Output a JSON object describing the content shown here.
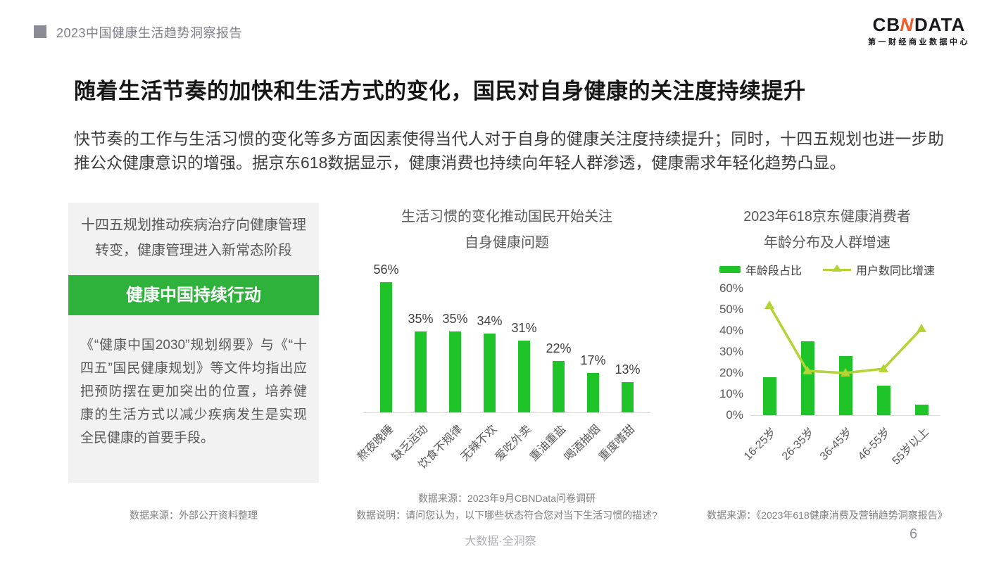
{
  "header": {
    "report_title": "2023中国健康生活趋势洞察报告",
    "bullet_color": "#8c8c96",
    "logo": {
      "name": "CBNDATA",
      "part_cb": "CB",
      "part_n": "N",
      "part_data": "DATA",
      "subtitle": "第一财经商业数据中心",
      "accent_color": "#f15a29"
    }
  },
  "page": {
    "title": "随着生活节奏的加快和生活方式的变化，国民对自身健康的关注度持续提升",
    "intro": "快节奏的工作与生活习惯的变化等多方面因素使得当代人对于自身的健康关注度持续提升；同时，十四五规划也进一步助推公众健康意识的增强。据京东618数据显示，健康消费也持续向年轻人群渗透，健康需求年轻化趋势凸显。"
  },
  "left_panel": {
    "title_lines": [
      "十四五规划推动疾病治疗向健康管理",
      "转变，健康管理进入新常态阶段"
    ],
    "banner": "健康中国持续行动",
    "banner_color": "#2eb23c",
    "body": "《“健康中国2030”规划纲要》与《“十四五”国民健康规划》等文件均指出应把预防摆在更加突出的位置，培养健康的生活方式以减少疾病发生是实现全民健康的首要手段。",
    "source": "数据来源：外部公开资料整理"
  },
  "chart_data": [
    {
      "type": "bar",
      "title": "生活习惯的变化推动国民开始关注自身健康问题",
      "title_lines": [
        "生活习惯的变化推动国民开始关注",
        "自身健康问题"
      ],
      "categories": [
        "熬夜晚睡",
        "缺乏运动",
        "饮食不规律",
        "无辣不欢",
        "爱吃外卖",
        "重油重盐",
        "喝酒抽烟",
        "重度嗜甜"
      ],
      "values": [
        56,
        35,
        35,
        34,
        31,
        22,
        17,
        13
      ],
      "unit": "%",
      "bar_color": "#1ec428",
      "ylim": [
        0,
        60
      ],
      "grid": false,
      "source": "数据来源：2023年9月CBNData问卷调研",
      "note": "数据说明：请问您认为，以下哪些状态符合您对当下生活习惯的描述?"
    },
    {
      "type": "bar+line",
      "title": "2023年618京东健康消费者年龄分布及人群增速",
      "title_lines": [
        "2023年618京东健康消费者",
        "年龄分布及人群增速"
      ],
      "categories": [
        "16-25岁",
        "26-35岁",
        "36-45岁",
        "46-55岁",
        "55岁以上"
      ],
      "series": [
        {
          "name": "年龄段占比",
          "type": "bar",
          "values": [
            18,
            35,
            28,
            14,
            5
          ],
          "color": "#1ec428"
        },
        {
          "name": "用户数同比增速",
          "type": "line",
          "values": [
            52,
            21,
            20,
            22,
            41
          ],
          "color": "#b4d334"
        }
      ],
      "unit": "%",
      "y_ticks": [
        "60%",
        "50%",
        "40%",
        "30%",
        "20%",
        "10%",
        "0%"
      ],
      "ylim": [
        0,
        60
      ],
      "grid": false,
      "legend_position": "top",
      "source": "数据来源：《2023年618健康消费及营销趋势洞察报告》"
    }
  ],
  "footer": {
    "tagline": "大数据·全洞察",
    "page_number": "6"
  }
}
